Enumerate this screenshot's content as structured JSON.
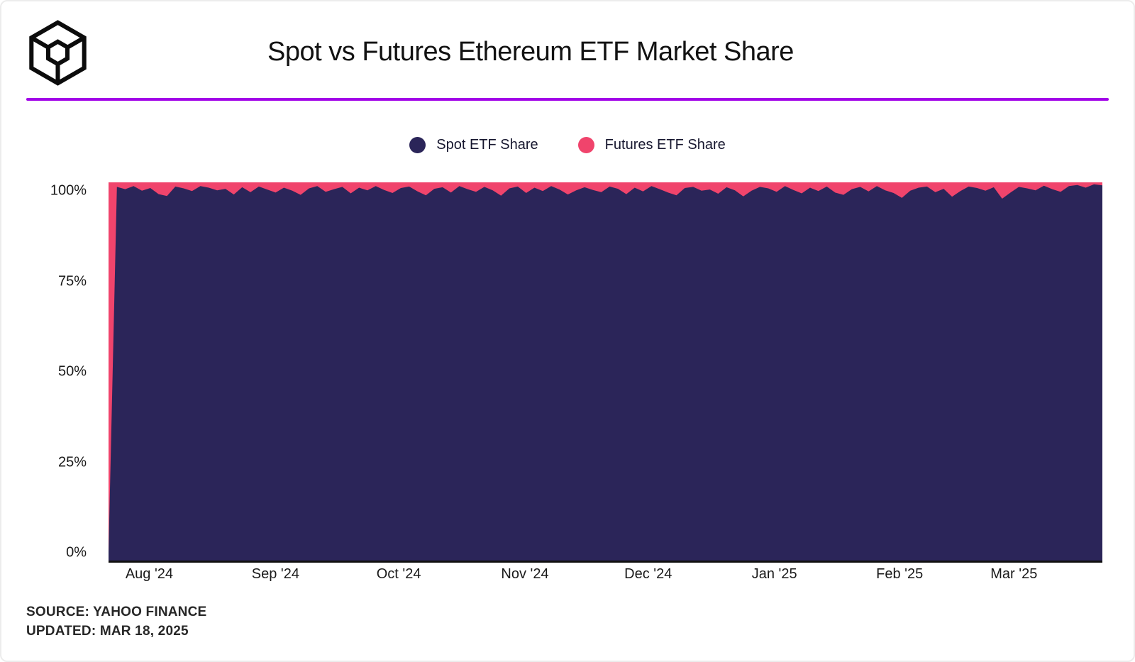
{
  "header": {
    "title": "Spot vs Futures Ethereum ETF Market Share",
    "logo_icon": "wireframe-cube-logo",
    "accent_color": "#A203E8"
  },
  "legend": {
    "items": [
      {
        "label": "Spot ETF Share",
        "color": "#2B2559"
      },
      {
        "label": "Futures ETF Share",
        "color": "#F0446C"
      }
    ]
  },
  "source": {
    "line1": "SOURCE: YAHOO FINANCE",
    "line2": "UPDATED: MAR 18, 2025"
  },
  "chart_data": {
    "type": "area",
    "stacked": true,
    "title": "Spot vs Futures Ethereum ETF Market Share",
    "xlabel": "",
    "ylabel": "",
    "ylim": [
      0,
      100
    ],
    "grid": false,
    "legend_position": "top",
    "y_ticks": [
      {
        "label": "100%",
        "value": 100
      },
      {
        "label": "75%",
        "value": 75
      },
      {
        "label": "50%",
        "value": 50
      },
      {
        "label": "25%",
        "value": 25
      },
      {
        "label": "0%",
        "value": 0
      }
    ],
    "x_ticks": [
      {
        "label": "Aug '24",
        "x": 0.041
      },
      {
        "label": "Sep '24",
        "x": 0.168
      },
      {
        "label": "Oct '24",
        "x": 0.292
      },
      {
        "label": "Nov '24",
        "x": 0.419
      },
      {
        "label": "Dec '24",
        "x": 0.543
      },
      {
        "label": "Jan '25",
        "x": 0.67
      },
      {
        "label": "Feb '25",
        "x": 0.796
      },
      {
        "label": "Mar '25",
        "x": 0.911
      }
    ],
    "x_range": [
      "Jul 22 2024",
      "Mar 18 2025"
    ],
    "series": [
      {
        "name": "Spot ETF Share",
        "color": "#2B2559",
        "unit": "%",
        "values": [
          2.5,
          98.8,
          98.2,
          99.0,
          97.8,
          98.5,
          96.9,
          96.4,
          98.9,
          98.4,
          97.7,
          99.0,
          98.6,
          97.9,
          98.3,
          96.8,
          98.7,
          97.4,
          98.9,
          98.1,
          97.3,
          98.6,
          97.8,
          96.7,
          98.4,
          99.0,
          97.5,
          98.2,
          98.8,
          97.1,
          98.6,
          97.9,
          99.0,
          98.0,
          97.2,
          98.5,
          98.9,
          97.6,
          96.6,
          98.3,
          98.7,
          97.3,
          99.0,
          98.2,
          97.5,
          98.8,
          97.9,
          96.5,
          98.4,
          98.9,
          97.2,
          98.6,
          97.7,
          99.0,
          98.1,
          96.8,
          97.9,
          98.7,
          98.0,
          97.4,
          98.9,
          98.3,
          96.9,
          98.6,
          97.6,
          99.0,
          98.2,
          97.3,
          96.6,
          98.5,
          98.8,
          97.8,
          98.1,
          97.0,
          98.7,
          97.9,
          96.3,
          97.8,
          98.8,
          98.4,
          97.5,
          99.0,
          98.0,
          97.1,
          98.6,
          97.7,
          98.9,
          97.3,
          96.7,
          98.2,
          98.8,
          97.6,
          99.0,
          97.9,
          97.2,
          95.9,
          97.8,
          98.6,
          98.9,
          97.4,
          98.3,
          96.2,
          97.7,
          98.9,
          98.5,
          97.8,
          98.7,
          95.7,
          97.3,
          98.8,
          98.4,
          97.9,
          99.1,
          98.2,
          97.5,
          99.0,
          99.3,
          98.6,
          99.5,
          99.2
        ]
      },
      {
        "name": "Futures ETF Share",
        "color": "#F0446C",
        "unit": "%",
        "values_note": "stacked remainder: 100 minus Spot ETF Share at each point"
      }
    ]
  }
}
